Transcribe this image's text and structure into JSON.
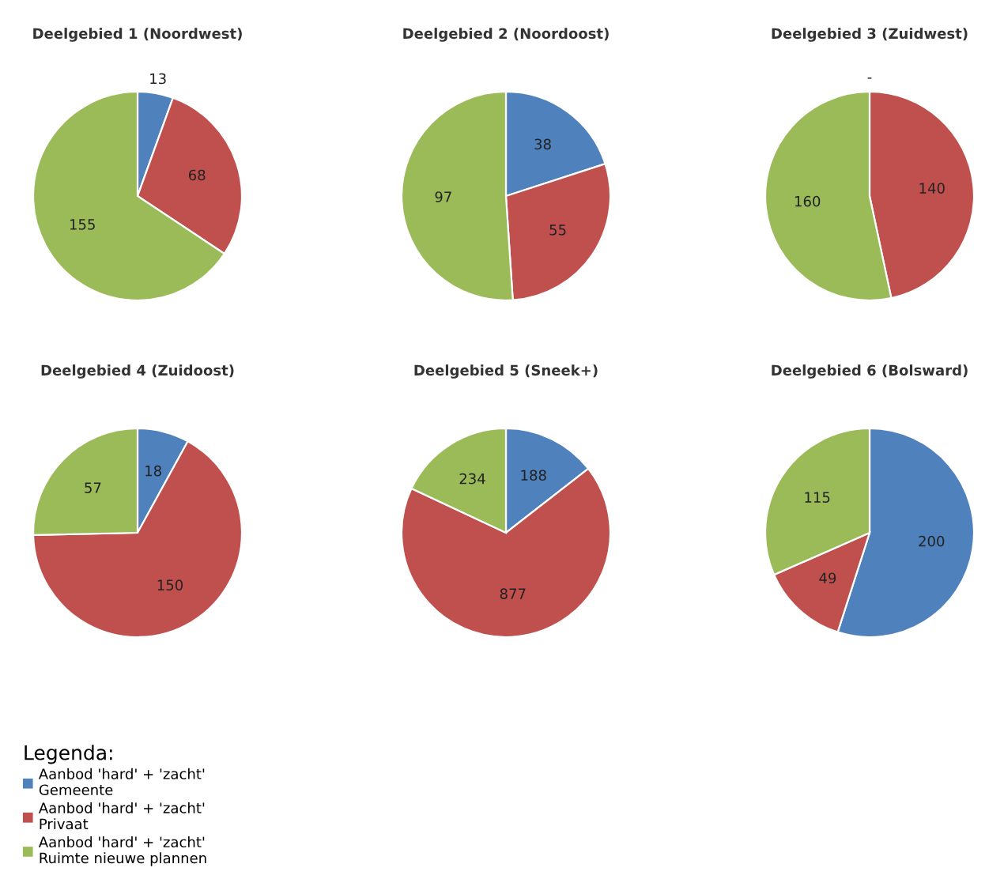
{
  "chart_data": [
    {
      "type": "pie",
      "title": "Deelgebied 1 (Noordwest)",
      "categories": [
        "Aanbod 'hard' + 'zacht'\nGemeente",
        "Aanbod 'hard' + 'zacht'\nPrivaat",
        "Aanbod 'hard' + 'zacht'\nRuimte nieuwe plannen"
      ],
      "values": [
        13,
        68,
        155
      ],
      "colors": [
        "#4f81bd",
        "#c0504d",
        "#9bbb59"
      ],
      "data_labels": true,
      "legend": "bottom left",
      "legend_title": "Legenda:"
    },
    {
      "type": "pie",
      "title": "Deelgebied 2 (Noordoost)",
      "values": [
        38,
        55,
        97
      ],
      "colors": [
        "#4f81bd",
        "#c0504d",
        "#9bbb59"
      ],
      "data_labels": true
    },
    {
      "type": "pie",
      "title": "Deelgebied 3 (Zuidwest)",
      "values": [
        0,
        140,
        160
      ],
      "value_labels": [
        "-",
        "140",
        "160"
      ],
      "colors": [
        "#4f81bd",
        "#c0504d",
        "#9bbb59"
      ]
    },
    {
      "type": "pie",
      "title": "Deelgebied 4 (Zuidoost)",
      "values": [
        18,
        150,
        57
      ],
      "colors": [
        "#4f81bd",
        "#c0504d",
        "#9bbb59"
      ],
      "data_labels": true
    },
    {
      "type": "pie",
      "title": "Deelgebied 5 (Sneek+)",
      "values": [
        188,
        877,
        234
      ],
      "colors": [
        "#4f81bd",
        "#c0504d",
        "#9bbb59"
      ],
      "data_labels": true
    },
    {
      "type": "pie",
      "title": "Deelgebied 6 (Bolsward)",
      "values": [
        200,
        49,
        115
      ],
      "colors": [
        "#4f81bd",
        "#c0504d",
        "#9bbb59"
      ],
      "data_labels": true
    }
  ]
}
